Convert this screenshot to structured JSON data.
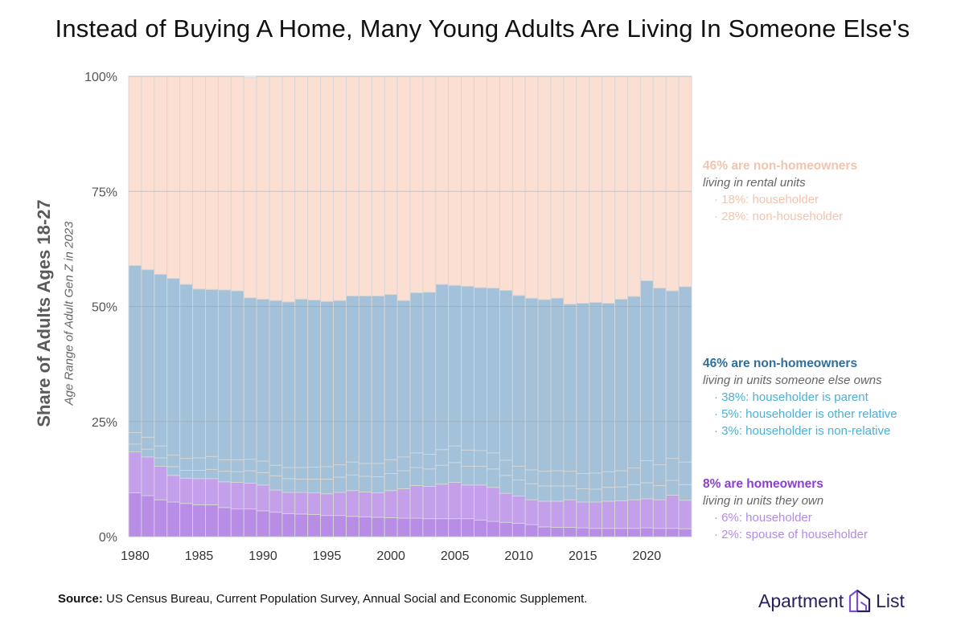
{
  "title": "Instead of Buying A Home, Many Young Adults Are Living In Someone Else's",
  "colors": {
    "rental": "#fadfd2",
    "someone_else": "#a3c2d9",
    "own_householder": "#c4a0ea",
    "own_spouse": "#b88de5",
    "grid": "#9aa0a6",
    "bar_border": "#d6d6d6"
  },
  "chart_data": {
    "type": "bar",
    "stacked": true,
    "x": [
      1980,
      1981,
      1982,
      1983,
      1984,
      1985,
      1986,
      1987,
      1988,
      1989,
      1990,
      1991,
      1992,
      1993,
      1994,
      1995,
      1996,
      1997,
      1998,
      1999,
      2000,
      2001,
      2002,
      2003,
      2004,
      2005,
      2006,
      2007,
      2008,
      2009,
      2010,
      2011,
      2012,
      2013,
      2014,
      2015,
      2016,
      2017,
      2018,
      2019,
      2020,
      2021,
      2022,
      2023
    ],
    "ylim": [
      0,
      100
    ],
    "y_ticks": [
      0,
      25,
      50,
      75,
      100
    ],
    "y_tick_labels": [
      "0%",
      "25%",
      "50%",
      "75%",
      "100%"
    ],
    "x_ticks": [
      1980,
      1985,
      1990,
      1995,
      2000,
      2005,
      2010,
      2015,
      2020
    ],
    "x_tick_labels": [
      "1980",
      "1985",
      "1990",
      "1995",
      "2000",
      "2005",
      "2010",
      "2015",
      "2020"
    ],
    "ylabel": "Share of Adults Ages 18-27",
    "ylabel_sub": "Age Range of Adult Gen Z in 2023",
    "series": [
      {
        "key": "own_spouse",
        "values": [
          9.5,
          8.9,
          8.0,
          7.5,
          7.2,
          6.9,
          6.9,
          6.3,
          6.0,
          6.0,
          5.6,
          5.3,
          5.0,
          4.9,
          4.8,
          4.6,
          4.6,
          4.4,
          4.3,
          4.2,
          4.1,
          4.0,
          4.0,
          3.9,
          3.9,
          3.9,
          3.9,
          3.6,
          3.3,
          3.1,
          2.9,
          2.6,
          2.1,
          2.0,
          2.0,
          1.9,
          1.8,
          1.8,
          1.8,
          1.8,
          1.9,
          1.8,
          1.8,
          1.7
        ]
      },
      {
        "key": "own_householder",
        "values": [
          8.9,
          8.4,
          7.3,
          5.8,
          5.5,
          5.7,
          5.7,
          5.6,
          5.8,
          5.6,
          5.6,
          4.8,
          4.6,
          4.7,
          4.7,
          4.7,
          5.0,
          5.6,
          5.4,
          5.3,
          5.9,
          6.4,
          7.1,
          7.0,
          7.5,
          7.9,
          7.3,
          7.6,
          7.4,
          6.3,
          5.9,
          5.4,
          5.6,
          5.7,
          6.0,
          5.6,
          5.7,
          5.9,
          6.0,
          6.2,
          6.3,
          6.2,
          7.2,
          6.2
        ]
      },
      {
        "key": "someone_else_nonrelative",
        "values": [
          1.7,
          1.7,
          1.8,
          1.9,
          1.7,
          1.8,
          2.0,
          2.3,
          2.3,
          2.7,
          2.7,
          3.1,
          3.0,
          2.9,
          3.0,
          3.2,
          3.3,
          3.4,
          3.4,
          3.5,
          3.7,
          3.9,
          3.9,
          3.8,
          4.1,
          4.3,
          4.1,
          4.1,
          4.0,
          3.9,
          3.5,
          3.5,
          3.3,
          3.3,
          3.0,
          2.9,
          2.8,
          3.0,
          3.0,
          3.3,
          3.5,
          3.1,
          3.2,
          3.4
        ]
      },
      {
        "key": "someone_else_relative",
        "values": [
          2.5,
          2.6,
          2.6,
          2.5,
          2.6,
          2.7,
          2.8,
          2.5,
          2.6,
          2.5,
          2.5,
          2.3,
          2.4,
          2.5,
          2.6,
          2.7,
          2.7,
          2.8,
          2.8,
          2.9,
          3.0,
          3.0,
          3.2,
          3.2,
          3.4,
          3.6,
          3.5,
          3.4,
          3.5,
          3.3,
          3.0,
          3.0,
          3.2,
          3.3,
          3.2,
          3.3,
          3.5,
          3.4,
          3.5,
          3.6,
          4.8,
          4.5,
          4.8,
          4.9
        ]
      },
      {
        "key": "someone_else_parent",
        "values": [
          36.3,
          36.4,
          37.3,
          38.4,
          37.8,
          36.7,
          36.3,
          36.9,
          36.7,
          35.1,
          35.2,
          35.8,
          36.0,
          36.6,
          36.3,
          35.9,
          35.7,
          36.1,
          36.4,
          36.4,
          35.9,
          34.0,
          34.8,
          35.2,
          35.9,
          34.9,
          35.6,
          35.4,
          35.8,
          36.9,
          37.1,
          37.3,
          37.3,
          37.5,
          36.3,
          37.0,
          37.1,
          36.6,
          37.3,
          37.3,
          39.1,
          38.4,
          36.4,
          38.1
        ]
      },
      {
        "key": "rental",
        "values": [
          41.1,
          42.0,
          43.0,
          43.9,
          45.2,
          46.2,
          46.3,
          46.4,
          46.6,
          47.8,
          48.4,
          48.7,
          49.0,
          48.4,
          48.6,
          48.9,
          48.7,
          47.7,
          47.7,
          47.7,
          47.4,
          48.7,
          47.0,
          46.9,
          45.2,
          45.4,
          45.6,
          45.9,
          46.0,
          46.5,
          47.6,
          48.2,
          48.5,
          48.2,
          49.5,
          49.3,
          49.1,
          49.3,
          48.4,
          47.8,
          44.4,
          46.0,
          46.6,
          45.7
        ]
      }
    ],
    "annotations": [
      {
        "headline": "46% are non-homeowners",
        "subtitle": "living in rental units",
        "items": [
          "· 18%: householder",
          "· 28%: non-householder"
        ]
      },
      {
        "headline": "46% are non-homeowners",
        "subtitle": "living in units someone else owns",
        "items": [
          "· 38%: householder is parent",
          "· 5%: householder is other relative",
          "· 3%: householder is non-relative"
        ]
      },
      {
        "headline": "8% are homeowners",
        "subtitle": "living in units they own",
        "items": [
          "· 6%: householder",
          "· 2%: spouse of householder"
        ]
      }
    ]
  },
  "source": {
    "label": "Source:",
    "text": " US Census Bureau, Current Population Survey, Annual Social and Economic Supplement."
  },
  "logo": {
    "word1": "Apartment",
    "word2": "List"
  }
}
